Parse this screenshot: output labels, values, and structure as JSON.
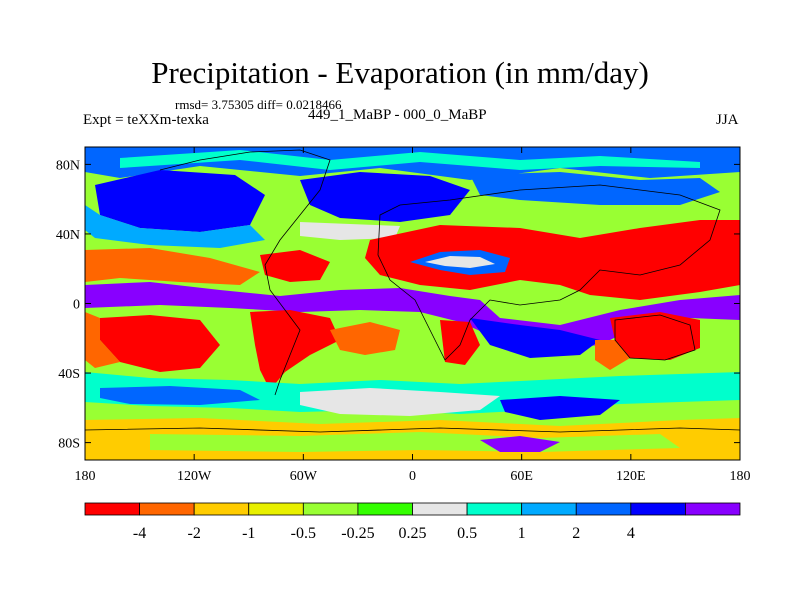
{
  "chart_data": {
    "type": "heatmap",
    "title": "Precipitation - Evaporation (in mm/day)",
    "stats": "rmsd= 3.75305 diff= 0.0218466",
    "experiment": "Expt = teXXm-texka",
    "subtitle": "449_1_MaBP - 000_0_MaBP",
    "season": "JJA",
    "xlim": [
      -180,
      180
    ],
    "ylim": [
      -90,
      90
    ],
    "x_ticks": [
      {
        "value": -180,
        "label": "180"
      },
      {
        "value": -120,
        "label": "120W"
      },
      {
        "value": -60,
        "label": "60W"
      },
      {
        "value": 0,
        "label": "0"
      },
      {
        "value": 60,
        "label": "60E"
      },
      {
        "value": 120,
        "label": "120E"
      },
      {
        "value": 180,
        "label": "180"
      }
    ],
    "y_ticks": [
      {
        "value": 80,
        "label": "80N"
      },
      {
        "value": 40,
        "label": "40N"
      },
      {
        "value": 0,
        "label": "0"
      },
      {
        "value": -40,
        "label": "40S"
      },
      {
        "value": -80,
        "label": "80S"
      }
    ],
    "colorbar": {
      "levels": [
        "-4",
        "-2",
        "-1",
        "-0.5",
        "-0.25",
        "0.25",
        "0.5",
        "1",
        "2",
        "4"
      ],
      "level_values": [
        -4,
        -2,
        -1,
        -0.5,
        -0.25,
        0.25,
        0.5,
        1,
        2,
        4
      ],
      "colors": [
        "#ff0000",
        "#ff6600",
        "#ffcc00",
        "#e8f000",
        "#99ff33",
        "#33ff00",
        "#e6e6e6",
        "#00ffcc",
        "#00aaff",
        "#0066ff",
        "#0000ff",
        "#8800ff"
      ]
    },
    "background_color": "#99ff33"
  }
}
